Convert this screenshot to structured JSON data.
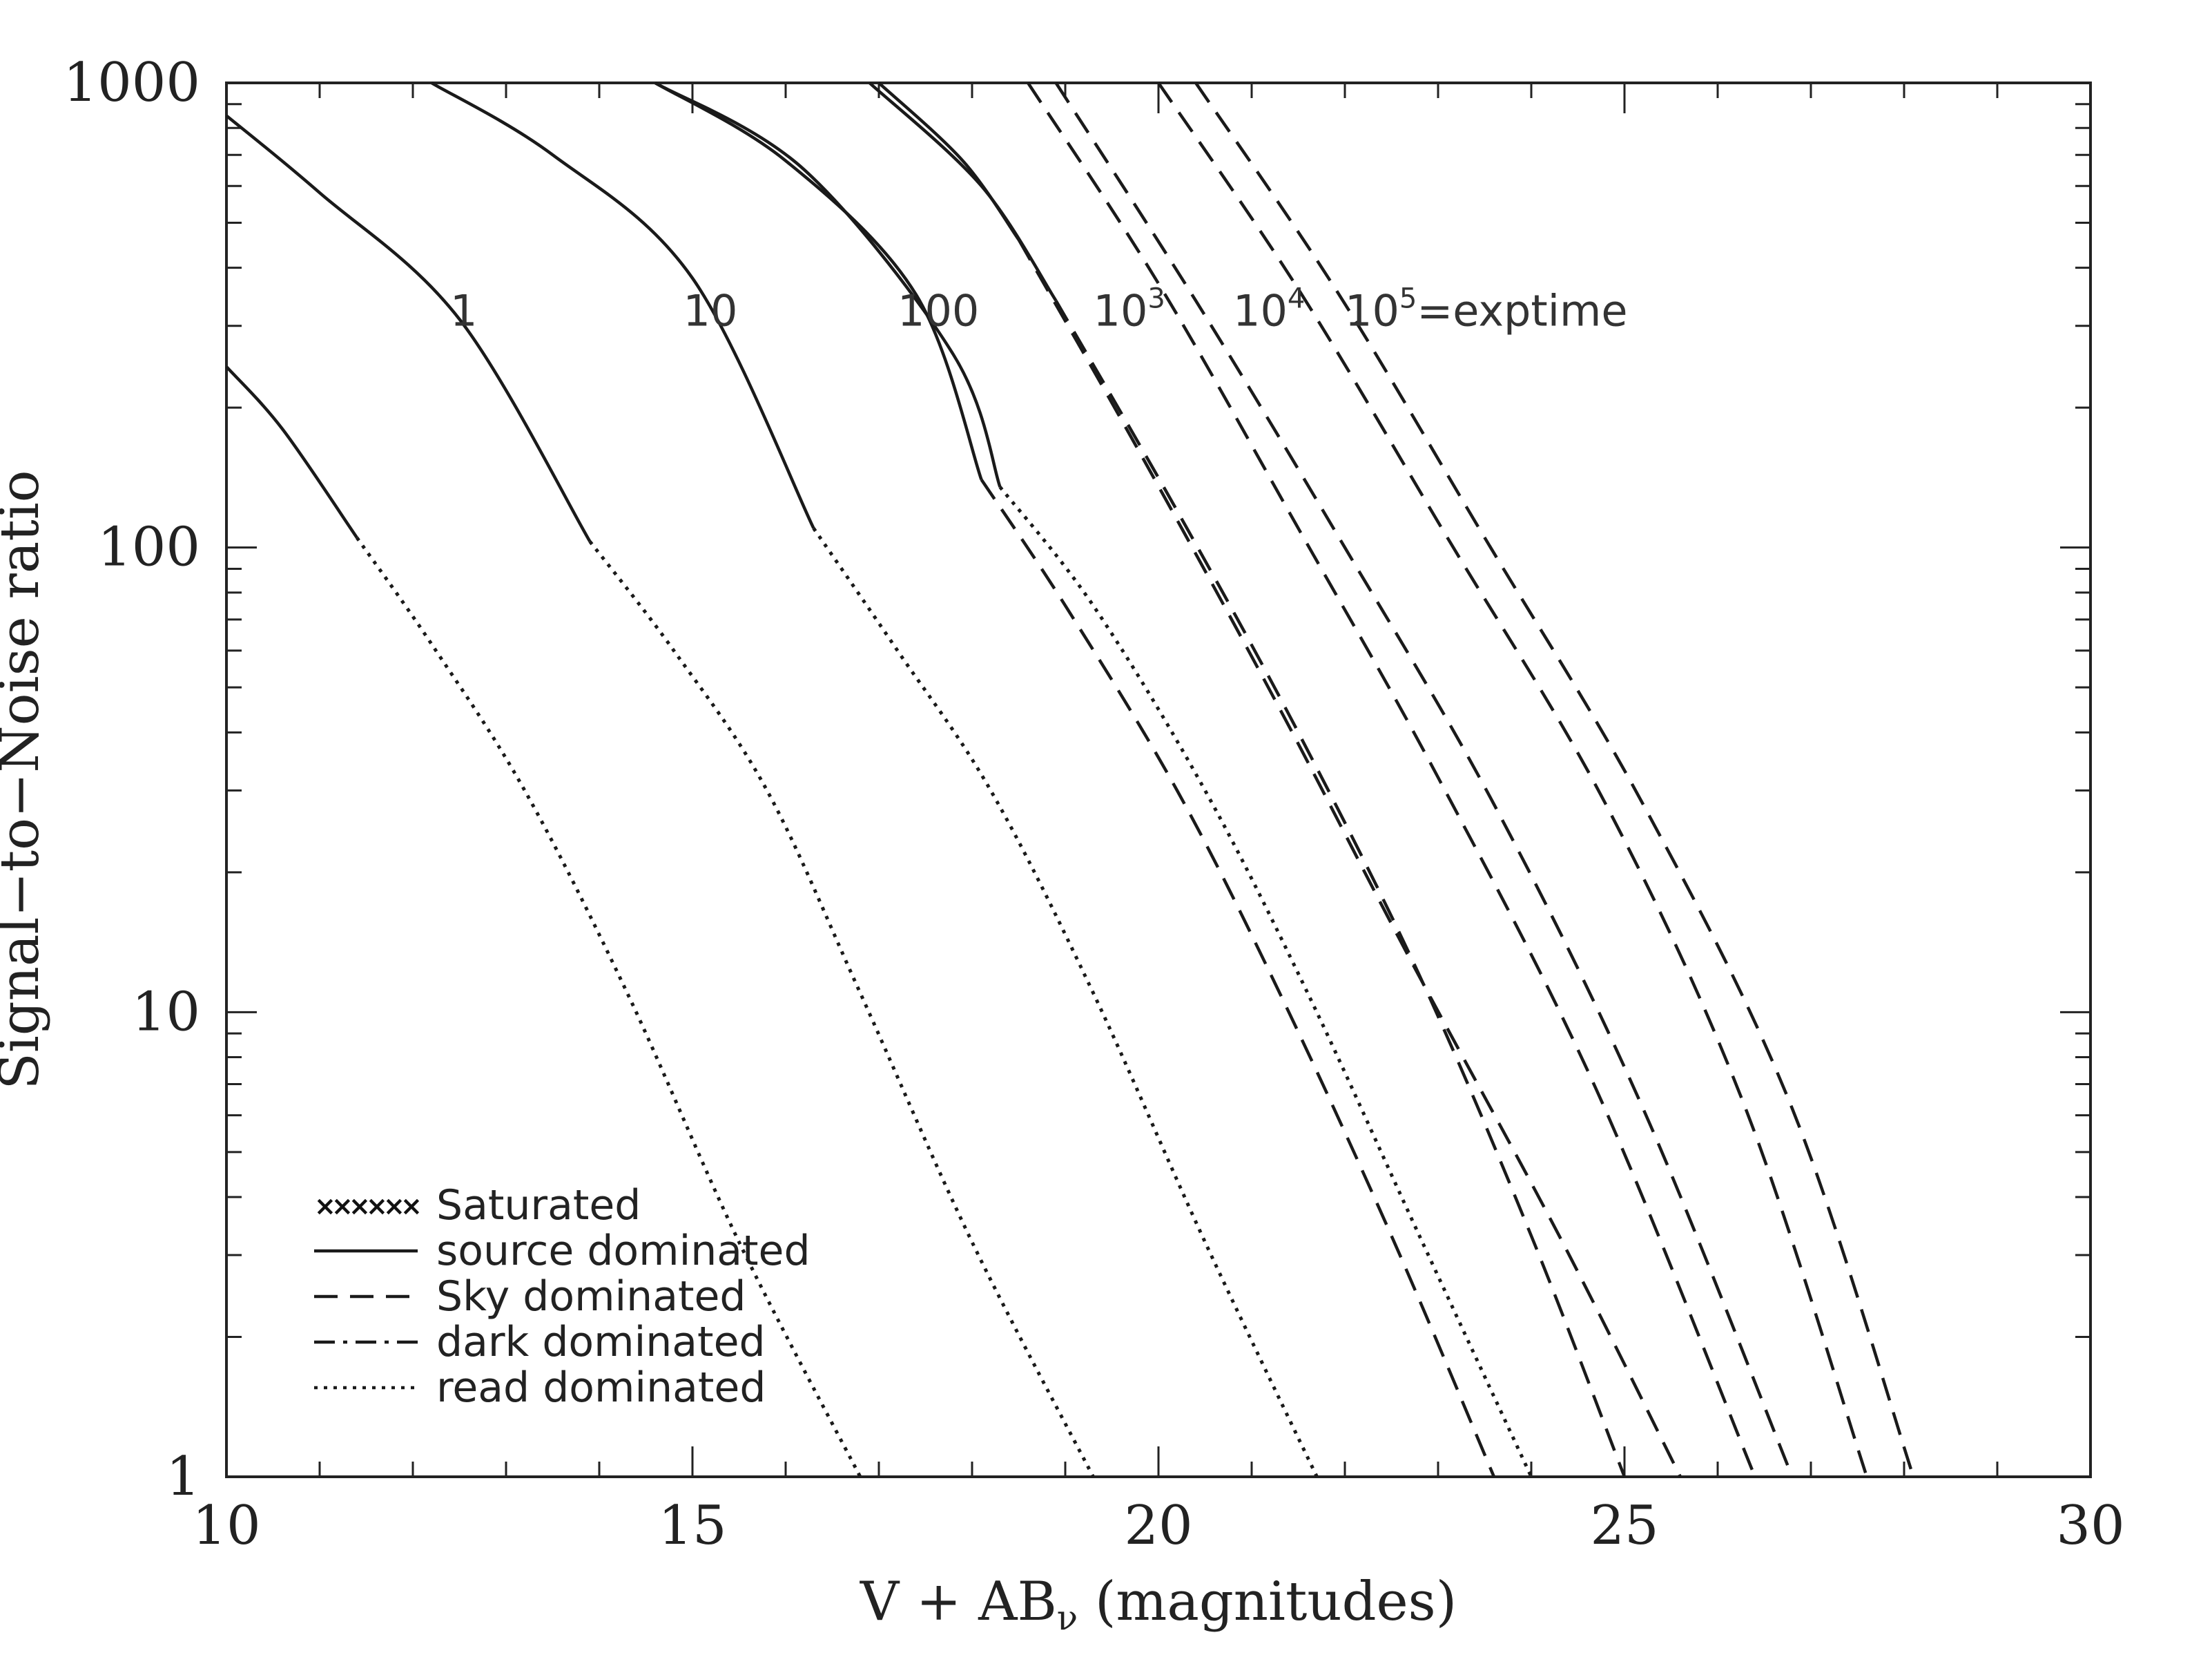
{
  "chart_data": {
    "type": "line",
    "title": "",
    "xlabel": "V + AB",
    "xlabel_sub": "ν",
    "xlabel_suffix": " (magnitudes)",
    "ylabel": "Signal−to−Noise ratio",
    "xlim": [
      10,
      30
    ],
    "ylim": [
      1,
      1000
    ],
    "yscale": "log",
    "grid": false,
    "x_ticks": [
      "10",
      "15",
      "20",
      "25",
      "30"
    ],
    "y_ticks": [
      "1",
      "10",
      "100",
      "1000"
    ],
    "legend_position": "bottom-left",
    "legend": [
      {
        "label": "Saturated",
        "style": "cross"
      },
      {
        "label": "source dominated",
        "style": "solid"
      },
      {
        "label": "Sky dominated",
        "style": "dashed"
      },
      {
        "label": "dark dominated",
        "style": "dashdot"
      },
      {
        "label": "read dominated",
        "style": "dotted"
      }
    ],
    "annotations": [
      {
        "base": "1",
        "sup": "",
        "suffix": "",
        "x": 12.4,
        "y": 300
      },
      {
        "base": "10",
        "sup": "",
        "suffix": "",
        "x": 14.9,
        "y": 300
      },
      {
        "base": "100",
        "sup": "",
        "suffix": "",
        "x": 17.2,
        "y": 300
      },
      {
        "base": "10",
        "sup": "3",
        "suffix": "",
        "x": 19.3,
        "y": 300
      },
      {
        "base": "10",
        "sup": "4",
        "suffix": "",
        "x": 20.8,
        "y": 300
      },
      {
        "base": "10",
        "sup": "5",
        "suffix": "=exptime",
        "x": 22.0,
        "y": 300
      }
    ],
    "series": [
      {
        "segments": [
          {
            "style": "solid",
            "points": [
              [
                10.0,
                245
              ],
              [
                10.6,
                180
              ],
              [
                11.4,
                105
              ]
            ]
          },
          {
            "style": "dotted",
            "points": [
              [
                11.4,
                105
              ],
              [
                12.2,
                62
              ],
              [
                13.2,
                30
              ],
              [
                14.3,
                11
              ],
              [
                15.5,
                3.2
              ],
              [
                16.8,
                1
              ]
            ]
          }
        ]
      },
      {
        "segments": [
          {
            "style": "solid",
            "points": [
              [
                10.0,
                850
              ],
              [
                11.0,
                580
              ],
              [
                12.5,
                310
              ],
              [
                13.9,
                103
              ]
            ]
          },
          {
            "style": "dotted",
            "points": [
              [
                13.9,
                103
              ],
              [
                14.8,
                60
              ],
              [
                15.8,
                30
              ],
              [
                16.8,
                11
              ],
              [
                18.0,
                3.2
              ],
              [
                19.3,
                1
              ]
            ]
          }
        ]
      },
      {
        "segments": [
          {
            "style": "solid",
            "points": [
              [
                12.2,
                1000
              ],
              [
                13.5,
                700
              ],
              [
                15.0,
                380
              ],
              [
                16.3,
                110
              ]
            ]
          },
          {
            "style": "dotted",
            "points": [
              [
                16.3,
                110
              ],
              [
                17.2,
                60
              ],
              [
                18.2,
                30
              ],
              [
                19.3,
                11
              ],
              [
                20.5,
                3.2
              ],
              [
                21.7,
                1
              ]
            ]
          }
        ]
      },
      {
        "segments": [
          {
            "style": "solid",
            "points": [
              [
                14.6,
                1000
              ],
              [
                16.0,
                680
              ],
              [
                17.4,
                350
              ],
              [
                18.1,
                140
              ]
            ]
          },
          {
            "style": "dashed",
            "points": [
              [
                18.1,
                140
              ],
              [
                19.0,
                75
              ],
              [
                20.2,
                30
              ],
              [
                21.3,
                11
              ],
              [
                22.5,
                3.3
              ],
              [
                23.6,
                1
              ]
            ]
          }
        ]
      },
      {
        "segments": [
          {
            "style": "solid",
            "points": [
              [
                14.6,
                1000
              ],
              [
                16.2,
                650
              ],
              [
                17.8,
                260
              ],
              [
                18.3,
                135
              ]
            ]
          },
          {
            "style": "dotted",
            "points": [
              [
                18.3,
                135
              ],
              [
                19.3,
                75
              ],
              [
                20.5,
                30
              ],
              [
                21.6,
                11
              ],
              [
                22.8,
                3.3
              ],
              [
                24.0,
                1
              ]
            ]
          }
        ]
      },
      {
        "segments": [
          {
            "style": "solid",
            "points": [
              [
                16.9,
                1000
              ],
              [
                18.1,
                600
              ],
              [
                18.9,
                340
              ]
            ]
          },
          {
            "style": "dashed",
            "points": [
              [
                18.9,
                340
              ],
              [
                20.2,
                120
              ],
              [
                21.5,
                40
              ],
              [
                22.8,
                12
              ],
              [
                24.0,
                3.3
              ],
              [
                25.0,
                1
              ]
            ]
          }
        ]
      },
      {
        "segments": [
          {
            "style": "solid",
            "points": [
              [
                17.0,
                1000
              ],
              [
                17.9,
                680
              ],
              [
                18.5,
                460
              ]
            ]
          },
          {
            "style": "dashed",
            "points": [
              [
                18.5,
                460
              ],
              [
                19.8,
                160
              ],
              [
                21.3,
                45
              ],
              [
                22.7,
                13
              ],
              [
                24.3,
                3.3
              ],
              [
                25.6,
                1
              ]
            ]
          }
        ]
      },
      {
        "segments": [
          {
            "style": "dashed",
            "points": [
              [
                18.6,
                1000
              ],
              [
                20.0,
                370
              ],
              [
                21.5,
                110
              ],
              [
                23.0,
                32
              ],
              [
                24.7,
                6.8
              ],
              [
                26.4,
                1
              ]
            ]
          }
        ]
      },
      {
        "segments": [
          {
            "style": "dashed",
            "points": [
              [
                18.9,
                1000
              ],
              [
                20.4,
                340
              ],
              [
                22.0,
                100
              ],
              [
                23.6,
                28
              ],
              [
                25.2,
                6.2
              ],
              [
                26.8,
                1
              ]
            ]
          }
        ]
      },
      {
        "segments": [
          {
            "style": "dashed",
            "points": [
              [
                20.0,
                1000
              ],
              [
                21.5,
                360
              ],
              [
                23.1,
                105
              ],
              [
                24.8,
                28
              ],
              [
                26.3,
                6.2
              ],
              [
                27.6,
                1
              ]
            ]
          }
        ]
      },
      {
        "segments": [
          {
            "style": "dashed",
            "points": [
              [
                20.4,
                1000
              ],
              [
                21.9,
                360
              ],
              [
                23.5,
                105
              ],
              [
                25.2,
                28
              ],
              [
                26.8,
                6.2
              ],
              [
                28.1,
                1
              ]
            ]
          }
        ]
      }
    ]
  }
}
